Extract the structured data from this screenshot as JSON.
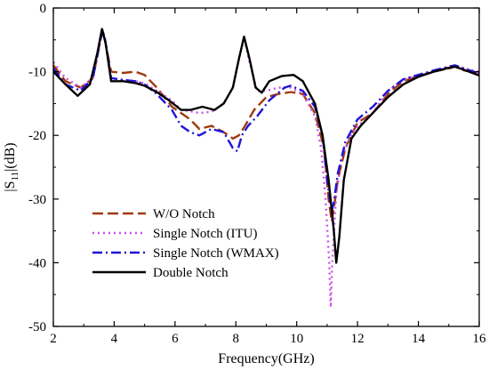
{
  "chart_data": {
    "type": "line",
    "xlabel": "Frequency(GHz)",
    "ylabel_main": "|S",
    "ylabel_sub": "11",
    "ylabel_tail": "|(dB)",
    "xlim": [
      2,
      16
    ],
    "ylim": [
      -50,
      0
    ],
    "xticks": [
      2,
      4,
      6,
      8,
      10,
      12,
      14,
      16
    ],
    "yticks": [
      0,
      -10,
      -20,
      -30,
      -40,
      -50
    ],
    "xtick_labels": [
      "2",
      "4",
      "6",
      "8",
      "10",
      "12",
      "14",
      "16"
    ],
    "ytick_labels": [
      "0",
      "-10",
      "-20",
      "-30",
      "-40",
      "-50"
    ],
    "grid": false,
    "legend_position": "lower-left",
    "series": [
      {
        "name": "W/O Notch",
        "color": "#a0390f",
        "dash": "12,5",
        "width": 2.4,
        "points": [
          [
            2.0,
            -9.0
          ],
          [
            2.4,
            -11.5
          ],
          [
            2.9,
            -12.5
          ],
          [
            3.3,
            -11.0
          ],
          [
            3.55,
            -5.0
          ],
          [
            3.62,
            -3.7
          ],
          [
            3.7,
            -5.2
          ],
          [
            3.9,
            -10.0
          ],
          [
            4.3,
            -10.2
          ],
          [
            4.7,
            -10.0
          ],
          [
            5.0,
            -10.5
          ],
          [
            5.4,
            -12.5
          ],
          [
            5.9,
            -15.5
          ],
          [
            6.2,
            -16.5
          ],
          [
            6.5,
            -17.5
          ],
          [
            6.8,
            -19.0
          ],
          [
            7.2,
            -18.5
          ],
          [
            7.6,
            -19.5
          ],
          [
            7.9,
            -20.5
          ],
          [
            8.1,
            -20.0
          ],
          [
            8.3,
            -18.5
          ],
          [
            8.6,
            -16.0
          ],
          [
            9.0,
            -14.0
          ],
          [
            9.4,
            -13.5
          ],
          [
            9.8,
            -13.2
          ],
          [
            10.2,
            -13.5
          ],
          [
            10.6,
            -16.5
          ],
          [
            10.9,
            -22.0
          ],
          [
            11.05,
            -30.0
          ],
          [
            11.15,
            -33.5
          ],
          [
            11.22,
            -31.5
          ],
          [
            11.35,
            -27.0
          ],
          [
            11.6,
            -22.0
          ],
          [
            12.0,
            -18.0
          ],
          [
            12.5,
            -16.5
          ],
          [
            13.0,
            -13.5
          ],
          [
            13.5,
            -11.5
          ],
          [
            14.0,
            -10.7
          ],
          [
            14.5,
            -10.0
          ],
          [
            15.0,
            -9.5
          ],
          [
            15.2,
            -9.2
          ],
          [
            15.5,
            -9.8
          ],
          [
            16.0,
            -10.2
          ]
        ]
      },
      {
        "name": "Single Notch (ITU)",
        "color": "#cc4fe8",
        "dash": "2,4",
        "width": 2.4,
        "points": [
          [
            2.0,
            -8.5
          ],
          [
            2.4,
            -11.0
          ],
          [
            2.9,
            -12.5
          ],
          [
            3.3,
            -11.0
          ],
          [
            3.55,
            -5.0
          ],
          [
            3.62,
            -3.5
          ],
          [
            3.7,
            -5.0
          ],
          [
            3.9,
            -11.0
          ],
          [
            4.3,
            -11.3
          ],
          [
            4.7,
            -11.5
          ],
          [
            5.0,
            -11.8
          ],
          [
            5.4,
            -13.0
          ],
          [
            5.9,
            -14.5
          ],
          [
            6.2,
            -16.0
          ],
          [
            6.5,
            -16.2
          ],
          [
            6.8,
            -16.5
          ],
          [
            7.2,
            -16.3
          ],
          [
            7.6,
            -15.0
          ],
          [
            7.9,
            -12.5
          ],
          [
            8.1,
            -8.0
          ],
          [
            8.27,
            -4.7
          ],
          [
            8.45,
            -8.5
          ],
          [
            8.7,
            -13.0
          ],
          [
            9.0,
            -13.0
          ],
          [
            9.4,
            -12.5
          ],
          [
            9.8,
            -12.5
          ],
          [
            10.2,
            -13.5
          ],
          [
            10.6,
            -17.0
          ],
          [
            10.8,
            -22.0
          ],
          [
            10.95,
            -30.0
          ],
          [
            11.07,
            -40.0
          ],
          [
            11.12,
            -47.0
          ],
          [
            11.17,
            -40.0
          ],
          [
            11.3,
            -29.0
          ],
          [
            11.5,
            -23.0
          ],
          [
            11.9,
            -19.0
          ],
          [
            12.5,
            -16.5
          ],
          [
            13.0,
            -13.0
          ],
          [
            13.5,
            -11.3
          ],
          [
            14.0,
            -10.5
          ],
          [
            14.5,
            -10.0
          ],
          [
            15.0,
            -9.3
          ],
          [
            15.2,
            -9.0
          ],
          [
            15.5,
            -9.5
          ],
          [
            16.0,
            -10.0
          ]
        ]
      },
      {
        "name": "Single Notch (WMAX)",
        "color": "#1e14d8",
        "dash": "11,4,2,4",
        "width": 2.4,
        "points": [
          [
            2.0,
            -9.5
          ],
          [
            2.4,
            -12.0
          ],
          [
            2.9,
            -13.0
          ],
          [
            3.3,
            -11.0
          ],
          [
            3.55,
            -5.0
          ],
          [
            3.62,
            -3.4
          ],
          [
            3.7,
            -5.0
          ],
          [
            3.9,
            -11.0
          ],
          [
            4.3,
            -11.3
          ],
          [
            4.7,
            -11.5
          ],
          [
            5.0,
            -12.0
          ],
          [
            5.4,
            -13.5
          ],
          [
            5.9,
            -16.0
          ],
          [
            6.2,
            -18.5
          ],
          [
            6.5,
            -19.5
          ],
          [
            6.8,
            -20.0
          ],
          [
            7.2,
            -19.0
          ],
          [
            7.6,
            -19.5
          ],
          [
            7.9,
            -22.0
          ],
          [
            8.05,
            -22.5
          ],
          [
            8.2,
            -20.0
          ],
          [
            8.4,
            -18.5
          ],
          [
            8.7,
            -17.0
          ],
          [
            9.1,
            -14.5
          ],
          [
            9.6,
            -12.5
          ],
          [
            9.8,
            -12.2
          ],
          [
            10.2,
            -13.0
          ],
          [
            10.6,
            -15.5
          ],
          [
            10.85,
            -20.0
          ],
          [
            11.0,
            -27.0
          ],
          [
            11.15,
            -32.0
          ],
          [
            11.22,
            -30.5
          ],
          [
            11.35,
            -26.0
          ],
          [
            11.6,
            -21.0
          ],
          [
            12.0,
            -17.5
          ],
          [
            12.5,
            -15.5
          ],
          [
            13.0,
            -13.0
          ],
          [
            13.5,
            -11.2
          ],
          [
            14.0,
            -10.5
          ],
          [
            14.5,
            -9.8
          ],
          [
            15.0,
            -9.2
          ],
          [
            15.2,
            -9.0
          ],
          [
            15.5,
            -9.5
          ],
          [
            16.0,
            -10.3
          ]
        ]
      },
      {
        "name": "Double Notch",
        "color": "#000000",
        "dash": "",
        "width": 2.4,
        "points": [
          [
            2.0,
            -10.0
          ],
          [
            2.4,
            -12.0
          ],
          [
            2.8,
            -13.8
          ],
          [
            3.2,
            -12.0
          ],
          [
            3.45,
            -7.0
          ],
          [
            3.6,
            -3.3
          ],
          [
            3.72,
            -5.5
          ],
          [
            3.9,
            -11.5
          ],
          [
            4.3,
            -11.5
          ],
          [
            4.7,
            -11.8
          ],
          [
            5.0,
            -12.2
          ],
          [
            5.4,
            -13.2
          ],
          [
            5.8,
            -14.5
          ],
          [
            6.2,
            -16.0
          ],
          [
            6.5,
            -16.0
          ],
          [
            6.9,
            -15.5
          ],
          [
            7.3,
            -16.0
          ],
          [
            7.6,
            -15.0
          ],
          [
            7.9,
            -12.5
          ],
          [
            8.1,
            -8.0
          ],
          [
            8.27,
            -4.5
          ],
          [
            8.45,
            -8.0
          ],
          [
            8.65,
            -12.5
          ],
          [
            8.85,
            -13.3
          ],
          [
            9.1,
            -11.5
          ],
          [
            9.5,
            -10.7
          ],
          [
            9.9,
            -10.5
          ],
          [
            10.2,
            -11.5
          ],
          [
            10.6,
            -15.0
          ],
          [
            10.85,
            -20.0
          ],
          [
            11.05,
            -27.0
          ],
          [
            11.22,
            -35.0
          ],
          [
            11.3,
            -40.0
          ],
          [
            11.4,
            -36.0
          ],
          [
            11.55,
            -27.0
          ],
          [
            11.8,
            -20.5
          ],
          [
            12.1,
            -18.5
          ],
          [
            12.5,
            -16.5
          ],
          [
            13.0,
            -14.0
          ],
          [
            13.5,
            -12.0
          ],
          [
            14.0,
            -10.8
          ],
          [
            14.5,
            -10.0
          ],
          [
            15.0,
            -9.4
          ],
          [
            15.2,
            -9.2
          ],
          [
            15.5,
            -9.7
          ],
          [
            16.0,
            -10.6
          ]
        ]
      }
    ]
  }
}
